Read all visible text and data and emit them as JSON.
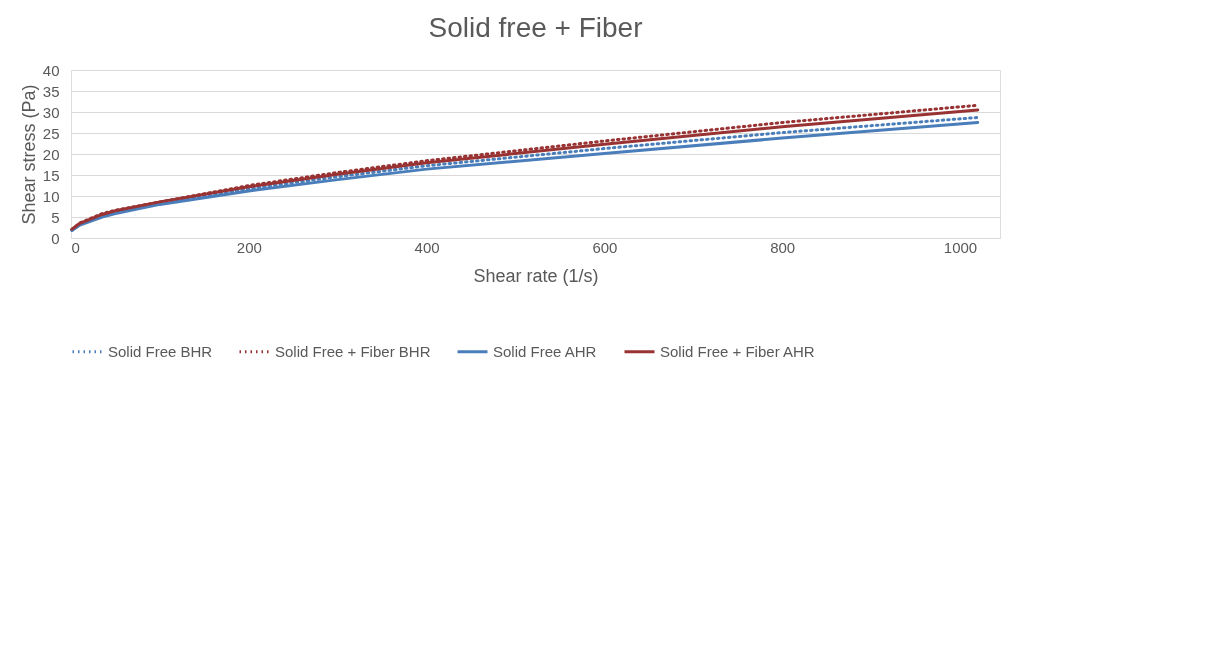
{
  "chart_data": {
    "type": "line",
    "title": "Solid free + Fiber",
    "xlabel": "Shear rate (1/s)",
    "ylabel": "Shear stress (Pa)",
    "xlim": [
      0,
      1045
    ],
    "xticks": [
      0,
      200,
      400,
      600,
      800,
      1000
    ],
    "ylim": [
      0,
      40
    ],
    "yticks": [
      0,
      5,
      10,
      15,
      20,
      25,
      30,
      35,
      40
    ],
    "grid": "y",
    "legend": "bottom",
    "marker": "none",
    "series": [
      {
        "name": "Solid Free BHR",
        "color": "#4a7ebb",
        "line_style": "dotted",
        "x": [
          1,
          10,
          35,
          50,
          100,
          200,
          300,
          400,
          600,
          800,
          1020
        ],
        "values": [
          1.8,
          3.3,
          5.2,
          6.0,
          8.2,
          11.7,
          14.6,
          17.2,
          21.3,
          25.1,
          28.7
        ]
      },
      {
        "name": "Solid Free + Fiber BHR",
        "color": "#993333",
        "line_style": "dotted",
        "x": [
          1,
          10,
          35,
          50,
          100,
          200,
          300,
          400,
          600,
          800,
          1020
        ],
        "values": [
          2.0,
          3.6,
          5.8,
          6.6,
          8.6,
          12.5,
          15.6,
          18.4,
          23.1,
          27.5,
          31.6
        ]
      },
      {
        "name": "Solid Free AHR",
        "color": "#4a7ebb",
        "line_style": "solid",
        "x": [
          1,
          10,
          35,
          50,
          100,
          200,
          300,
          400,
          600,
          800,
          1020
        ],
        "values": [
          1.8,
          3.1,
          5.0,
          5.8,
          8.0,
          11.2,
          13.9,
          16.4,
          20.1,
          23.8,
          27.5
        ]
      },
      {
        "name": "Solid Free + Fiber AHR",
        "color": "#993333",
        "line_style": "solid",
        "x": [
          1,
          10,
          35,
          50,
          100,
          200,
          300,
          400,
          600,
          800,
          1020
        ],
        "values": [
          2.1,
          3.5,
          5.6,
          6.5,
          8.6,
          12.2,
          15.2,
          17.9,
          22.3,
          26.5,
          30.5
        ]
      }
    ]
  }
}
